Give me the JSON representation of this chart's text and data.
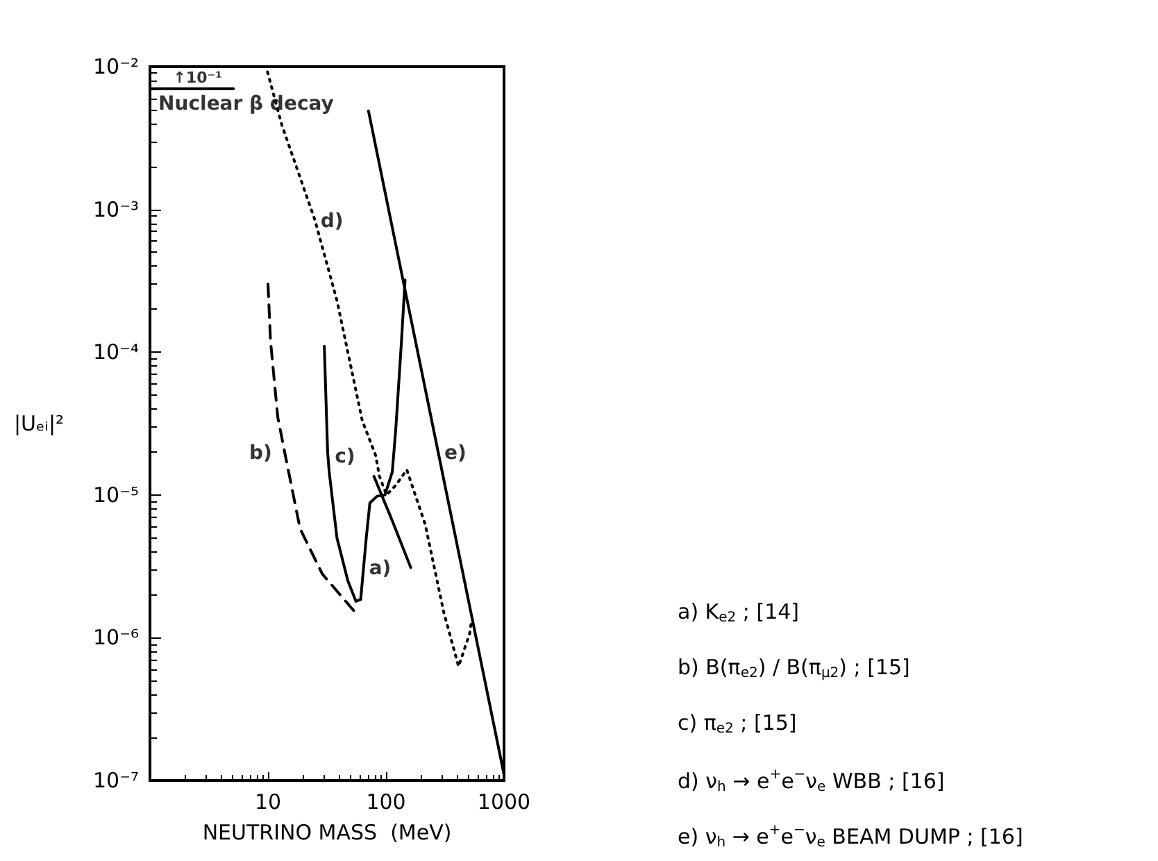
{
  "chart_data": {
    "type": "line",
    "xlabel": "NEUTRINO MASS  (MeV)",
    "ylabel": "|Uₑᵢ|²",
    "log": "xy",
    "grid": false,
    "marker": "none",
    "xlim": [
      1,
      1000
    ],
    "xticks": [
      10,
      100,
      1000
    ],
    "ylim": [
      1e-07,
      0.01
    ],
    "yticks": [
      {
        "value": 1e-07,
        "label": "10⁻⁷"
      },
      {
        "value": 1e-06,
        "label": "10⁻⁶"
      },
      {
        "value": 1e-05,
        "label": "10⁻⁵"
      },
      {
        "value": 0.0001,
        "label": "10⁻⁴"
      },
      {
        "value": 0.001,
        "label": "10⁻³"
      },
      {
        "value": 0.01,
        "label": "10⁻²"
      }
    ],
    "series": [
      {
        "color": "#000000",
        "line_style": "solid",
        "x": [
          79,
          113,
          162
        ],
        "values": [
          1.35e-05,
          6.6e-06,
          3.1e-06
        ]
      },
      {
        "color": "#000000",
        "line_style": "dashed",
        "x": [
          10,
          10.5,
          12.1,
          14,
          18.7,
          28.8,
          55
        ],
        "values": [
          0.0003,
          0.00012,
          3.5e-05,
          1.9e-05,
          5.8e-06,
          2.8e-06,
          1.5e-06
        ]
      },
      {
        "color": "#000000",
        "line_style": "solid",
        "x": [
          30,
          32,
          33,
          38.4,
          47.5,
          55.6,
          61,
          68,
          73,
          84,
          98,
          113,
          121,
          135,
          145
        ],
        "values": [
          0.00011,
          2e-05,
          1.45e-05,
          5e-06,
          2.5e-06,
          1.8e-06,
          1.85e-06,
          5e-06,
          8.8e-06,
          9.8e-06,
          1e-05,
          1.45e-05,
          2.9e-05,
          0.000117,
          0.00032
        ]
      },
      {
        "color": "#000000",
        "line_style": "dotted",
        "x": [
          9.9,
          13.1,
          25,
          38.4,
          63,
          81.6,
          88,
          101,
          121,
          150,
          215,
          309,
          412,
          510,
          530
        ],
        "values": [
          0.0092,
          0.0039,
          0.00084,
          0.00023,
          3.3e-05,
          1.9e-05,
          1.35e-05,
          1e-05,
          1.17e-05,
          1.5e-05,
          6.2e-06,
          1.5e-06,
          6.3e-07,
          1.06e-06,
          1.3e-06
        ]
      },
      {
        "color": "#000000",
        "line_style": "solid",
        "x": [
          71,
          280,
          1000
        ],
        "values": [
          0.0049,
          1.9e-05,
          1.1e-07
        ]
      },
      {
        "color": "#000000",
        "line_style": "solid",
        "x": [
          1,
          2.3,
          5.1
        ],
        "values": [
          0.007,
          0.007,
          0.007
        ]
      }
    ],
    "annotations": [
      {
        "text": "↑10⁻¹",
        "x": 2.3,
        "y": 0.007
      },
      {
        "text": "Nuclear β decay",
        "x": 1,
        "y": 0.007
      },
      {
        "text": "a)",
        "x": 162,
        "y": 3.1e-06
      },
      {
        "text": "b)",
        "x": 14,
        "y": 1.9e-05
      },
      {
        "text": "c)",
        "x": 33,
        "y": 1.45e-05
      },
      {
        "text": "d)",
        "x": 25,
        "y": 0.00084
      },
      {
        "text": "e)",
        "x": 280,
        "y": 1.9e-05
      },
      "a) K$_{e2}$ ; [14]",
      "b) B(π$_{e2}$) / B(π$_{μ2}$) ; [15]",
      "c) π$_{e2}$ ; [15]",
      "d) ν$_{h}$ → e$^{+}$e$^{−}$ν$_{e}$ WBB ; [16]",
      "e) ν$_{h}$ → e$^{+}$e$^{−}$ν$_{e}$ BEAM DUMP ; [16]"
    ]
  }
}
